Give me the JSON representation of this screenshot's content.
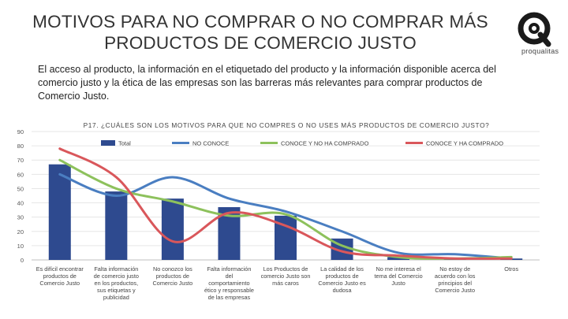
{
  "header": {
    "title": "MOTIVOS PARA NO COMPRAR O NO COMPRAR MÁS PRODUCTOS DE COMERCIO JUSTO",
    "subtitle": "El acceso al producto, la información en el etiquetado del producto y la información disponible acerca del comercio justo y la ética de las empresas son las barreras más relevantes para comprar productos de Comercio Justo.",
    "logo_text": "proqualitas"
  },
  "colors": {
    "total": "#2E4A8F",
    "no_conoce": "#4A7EC1",
    "conoce_no_comprado": "#8DC15C",
    "conoce_comprado": "#D9575B"
  },
  "chart_data": {
    "type": "bar",
    "title": "P17. ¿CUÁLES SON LOS MOTIVOS PARA QUE NO COMPRES O NO USES MÁS PRODUCTOS DE COMERCIO JUSTO?",
    "ylim": [
      0,
      90
    ],
    "yticks": [
      0,
      10,
      20,
      30,
      40,
      50,
      60,
      70,
      80,
      90
    ],
    "categories": [
      [
        "Es difícil encontrar",
        "productos de",
        "Comercio Justo"
      ],
      [
        "Falta información",
        "de comercio justo",
        "en los productos,",
        "sus etiquetas y",
        "publicidad"
      ],
      [
        "No conozco los",
        "productos de",
        "Comercio Justo"
      ],
      [
        "Falta información",
        "del",
        "comportamiento",
        "ético y responsable",
        "de las empresas"
      ],
      [
        "Los Productos de",
        "comercio Justo son",
        "más caros"
      ],
      [
        "La calidad de los",
        "productos de",
        "Comercio Justo es",
        "dudosa"
      ],
      [
        "No me interesa el",
        "tema del Comercio",
        "Justo"
      ],
      [
        "No estoy de",
        "acuerdo con los",
        "principios del",
        "Comercio Justo"
      ],
      [
        "Otros"
      ]
    ],
    "series": [
      {
        "name": "Total",
        "kind": "bar",
        "values": [
          67,
          48,
          43,
          37,
          31,
          15,
          2,
          1,
          1
        ]
      },
      {
        "name": "NO CONOCE",
        "kind": "line",
        "values": [
          60,
          45,
          58,
          43,
          34,
          20,
          5,
          4,
          1
        ]
      },
      {
        "name": "CONOCE Y NO HA COMPRADO",
        "kind": "line",
        "values": [
          70,
          50,
          41,
          31,
          32,
          10,
          2,
          1,
          2
        ]
      },
      {
        "name": "CONOCE Y HA COMPRADO",
        "kind": "line",
        "values": [
          78,
          58,
          13,
          33,
          24,
          6,
          3,
          1,
          1
        ]
      }
    ]
  }
}
